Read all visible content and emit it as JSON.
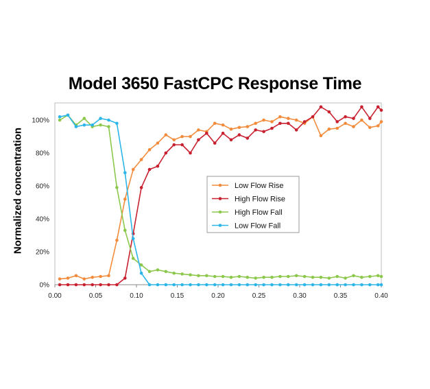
{
  "chart_data": {
    "type": "line",
    "title": "Model 3650 FastCPC Response Time",
    "xlabel": "",
    "ylabel": "Normalized concentration",
    "xlim": [
      0,
      0.4
    ],
    "ylim": [
      0,
      1.1
    ],
    "x_ticks": [
      "0.00",
      "0.05",
      "0.10",
      "0.15",
      "0.20",
      "0.25",
      "0.30",
      "0.35",
      "0.40"
    ],
    "y_ticks": [
      "0%",
      "20%",
      "40%",
      "60%",
      "80%",
      "100%"
    ],
    "grid": true,
    "legend_position": "center-right",
    "series": [
      {
        "name": "Low Flow Rise",
        "color": "#F28C3C",
        "x": [
          0.006,
          0.016,
          0.026,
          0.036,
          0.046,
          0.056,
          0.066,
          0.076,
          0.086,
          0.096,
          0.106,
          0.116,
          0.126,
          0.136,
          0.146,
          0.156,
          0.166,
          0.176,
          0.186,
          0.196,
          0.206,
          0.216,
          0.226,
          0.236,
          0.246,
          0.256,
          0.266,
          0.276,
          0.286,
          0.296,
          0.306,
          0.316,
          0.326,
          0.336,
          0.346,
          0.356,
          0.366,
          0.376,
          0.386,
          0.396,
          0.4
        ],
        "y": [
          0.035,
          0.04,
          0.055,
          0.035,
          0.045,
          0.05,
          0.055,
          0.27,
          0.52,
          0.7,
          0.76,
          0.82,
          0.86,
          0.91,
          0.88,
          0.9,
          0.9,
          0.94,
          0.93,
          0.98,
          0.97,
          0.945,
          0.955,
          0.96,
          0.98,
          1.0,
          0.99,
          1.02,
          1.01,
          1.0,
          0.98,
          1.02,
          0.905,
          0.945,
          0.95,
          0.98,
          0.96,
          1.0,
          0.955,
          0.965,
          0.99
        ]
      },
      {
        "name": "High Flow Rise",
        "color": "#C8202F",
        "x": [
          0.006,
          0.016,
          0.026,
          0.036,
          0.046,
          0.056,
          0.066,
          0.076,
          0.086,
          0.096,
          0.106,
          0.116,
          0.126,
          0.136,
          0.146,
          0.156,
          0.166,
          0.176,
          0.186,
          0.196,
          0.206,
          0.216,
          0.226,
          0.236,
          0.246,
          0.256,
          0.266,
          0.276,
          0.286,
          0.296,
          0.306,
          0.316,
          0.326,
          0.336,
          0.346,
          0.356,
          0.366,
          0.376,
          0.386,
          0.396,
          0.4
        ],
        "y": [
          0,
          0,
          0,
          0,
          0,
          0,
          0,
          0,
          0.04,
          0.31,
          0.59,
          0.7,
          0.72,
          0.8,
          0.85,
          0.85,
          0.8,
          0.88,
          0.92,
          0.86,
          0.92,
          0.88,
          0.91,
          0.89,
          0.94,
          0.93,
          0.95,
          0.98,
          0.98,
          0.94,
          0.99,
          1.02,
          1.08,
          1.05,
          0.99,
          1.02,
          1.01,
          1.08,
          1.01,
          1.08,
          1.06
        ]
      },
      {
        "name": "High Flow Fall",
        "color": "#8CC84B",
        "x": [
          0.006,
          0.016,
          0.026,
          0.036,
          0.046,
          0.056,
          0.066,
          0.076,
          0.086,
          0.096,
          0.106,
          0.116,
          0.126,
          0.136,
          0.146,
          0.156,
          0.166,
          0.176,
          0.186,
          0.196,
          0.206,
          0.216,
          0.226,
          0.236,
          0.246,
          0.256,
          0.266,
          0.276,
          0.286,
          0.296,
          0.306,
          0.316,
          0.326,
          0.336,
          0.346,
          0.356,
          0.366,
          0.376,
          0.386,
          0.396,
          0.4
        ],
        "y": [
          1.0,
          1.03,
          0.97,
          1.01,
          0.96,
          0.97,
          0.96,
          0.59,
          0.33,
          0.16,
          0.12,
          0.08,
          0.09,
          0.08,
          0.07,
          0.065,
          0.06,
          0.055,
          0.055,
          0.05,
          0.05,
          0.045,
          0.05,
          0.045,
          0.04,
          0.045,
          0.045,
          0.05,
          0.05,
          0.055,
          0.05,
          0.045,
          0.045,
          0.04,
          0.05,
          0.04,
          0.055,
          0.045,
          0.05,
          0.055,
          0.05
        ]
      },
      {
        "name": "Low Flow Fall",
        "color": "#2BB5E8",
        "x": [
          0.006,
          0.016,
          0.026,
          0.036,
          0.046,
          0.056,
          0.066,
          0.076,
          0.086,
          0.096,
          0.106,
          0.116,
          0.126,
          0.136,
          0.146,
          0.156,
          0.166,
          0.176,
          0.186,
          0.196,
          0.206,
          0.216,
          0.226,
          0.236,
          0.246,
          0.256,
          0.266,
          0.276,
          0.286,
          0.296,
          0.306,
          0.316,
          0.326,
          0.336,
          0.346,
          0.356,
          0.366,
          0.376,
          0.386,
          0.396,
          0.4
        ],
        "y": [
          1.02,
          1.03,
          0.96,
          0.97,
          0.97,
          1.01,
          1.0,
          0.98,
          0.68,
          0.28,
          0.07,
          0,
          0,
          0,
          0,
          0,
          0,
          0,
          0,
          0,
          0,
          0,
          0,
          0,
          0,
          0,
          0,
          0,
          0,
          0,
          0,
          0,
          0,
          0,
          0,
          0,
          0,
          0,
          0,
          0,
          0
        ]
      }
    ]
  }
}
